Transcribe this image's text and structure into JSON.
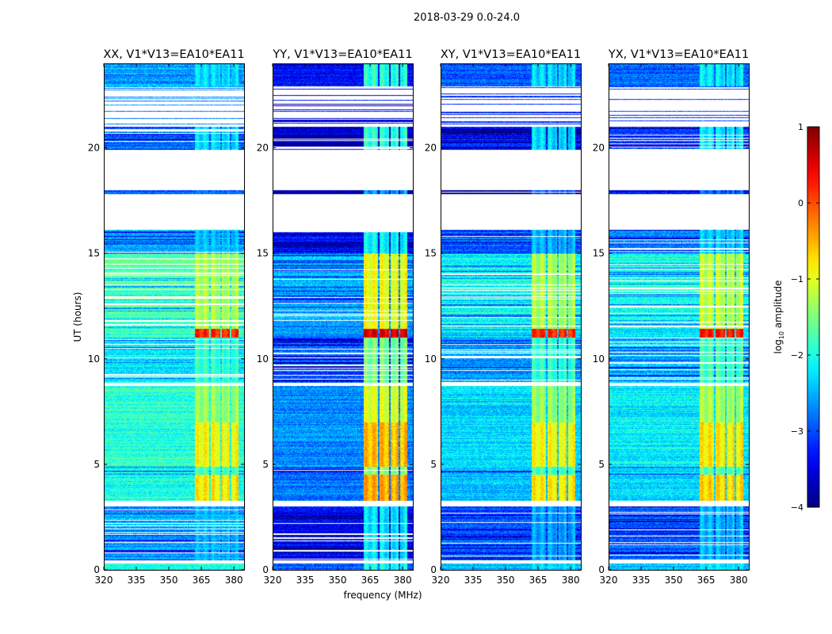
{
  "chart_data": {
    "type": "heatmap",
    "title": "2018-03-29 0.0-24.0",
    "xlabel": "frequency (MHz)",
    "ylabel": "UT (hours)",
    "xlim": [
      320,
      384.7
    ],
    "ylim": [
      0,
      24
    ],
    "xticks": [
      "320",
      "335",
      "350",
      "365",
      "380"
    ],
    "xtick_values": [
      320,
      335,
      350,
      365,
      380
    ],
    "yticks": [
      "0",
      "5",
      "10",
      "15",
      "20"
    ],
    "ytick_values": [
      0,
      5,
      10,
      15,
      20
    ],
    "colorbar": {
      "label_main": "log",
      "label_sub": "10",
      "label_rest": " amplitude",
      "range": [
        -4,
        1
      ],
      "colormap": "jet",
      "ticks": [
        "1",
        "0",
        "−1",
        "−2",
        "−3",
        "−4"
      ],
      "tick_values": [
        1,
        0,
        -1,
        -2,
        -3,
        -4
      ]
    },
    "rfi_band_mhz": [
      362,
      382
    ],
    "rfi_subgaps_mhz": [
      [
        368.5,
        369.3
      ],
      [
        373.8,
        374.6
      ],
      [
        378.2,
        379
      ]
    ],
    "time_segments": [
      {
        "t": [
          0,
          0.3
        ],
        "bg": -2.6,
        "rfi": -2.4
      },
      {
        "t": [
          0.3,
          0.45
        ],
        "gap": true
      },
      {
        "t": [
          0.45,
          3.0
        ],
        "bg": -3.1,
        "rfi": -2.6,
        "lines": true
      },
      {
        "t": [
          3.0,
          3.25
        ],
        "gap": true
      },
      {
        "t": [
          3.25,
          4.5
        ],
        "bg": -2.5,
        "rfi": -0.8
      },
      {
        "t": [
          4.5,
          4.9
        ],
        "bg": -2.6,
        "rfi": -1.8,
        "lines": true
      },
      {
        "t": [
          4.9,
          7.0
        ],
        "bg": -2.4,
        "rfi": -0.9
      },
      {
        "t": [
          7.0,
          8.7
        ],
        "bg": -2.4,
        "rfi": -1.4
      },
      {
        "t": [
          8.7,
          8.85
        ],
        "gap": true
      },
      {
        "t": [
          8.85,
          11.0
        ],
        "bg": -2.7,
        "rfi": -1.9,
        "lines": true
      },
      {
        "t": [
          11.0,
          11.4
        ],
        "bg": -2.4,
        "rfi": 0.2
      },
      {
        "t": [
          11.4,
          15.0
        ],
        "bg": -2.2,
        "rfi": -1.3,
        "lines": true
      },
      {
        "t": [
          15.0,
          16.1
        ],
        "bg": -3.0,
        "rfi": -2.5,
        "lines": true
      },
      {
        "t": [
          16.1,
          17.8
        ],
        "gap": true
      },
      {
        "t": [
          17.8,
          18.0
        ],
        "bg": -3.4,
        "rfi": -3.0,
        "lines": true
      },
      {
        "t": [
          18.0,
          19.9
        ],
        "gap": true
      },
      {
        "t": [
          19.9,
          21.0
        ],
        "bg": -3.4,
        "rfi": -2.3,
        "lines": true
      },
      {
        "t": [
          21.0,
          22.9
        ],
        "gap": true,
        "sparse": true
      },
      {
        "t": [
          22.9,
          24.0
        ],
        "bg": -3.1,
        "rfi": -2.3
      }
    ],
    "panels": [
      {
        "title": "XX, V1*V13=EA10*EA11",
        "bg_offset": 0.5,
        "rfi_offset": 0.0
      },
      {
        "title": "YY, V1*V13=EA10*EA11",
        "bg_offset": -0.3,
        "rfi_offset": 0.35
      },
      {
        "title": "XY, V1*V13=EA10*EA11",
        "bg_offset": 0.1,
        "rfi_offset": 0.0
      },
      {
        "title": "YX, V1*V13=EA10*EA11",
        "bg_offset": 0.2,
        "rfi_offset": 0.1
      }
    ]
  }
}
